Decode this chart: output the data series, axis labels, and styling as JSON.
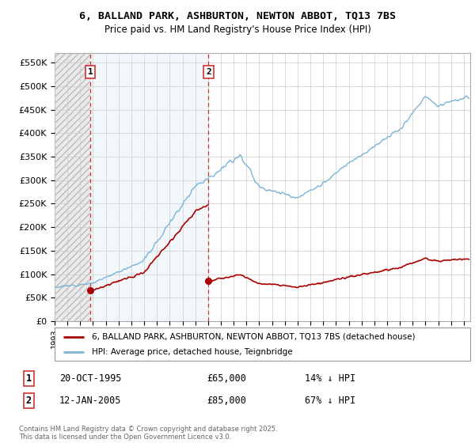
{
  "title_line1": "6, BALLAND PARK, ASHBURTON, NEWTON ABBOT, TQ13 7BS",
  "title_line2": "Price paid vs. HM Land Registry's House Price Index (HPI)",
  "ylim": [
    0,
    570000
  ],
  "yticks": [
    0,
    50000,
    100000,
    150000,
    200000,
    250000,
    300000,
    350000,
    400000,
    450000,
    500000,
    550000
  ],
  "ytick_labels": [
    "£0",
    "£50K",
    "£100K",
    "£150K",
    "£200K",
    "£250K",
    "£300K",
    "£350K",
    "£400K",
    "£450K",
    "£500K",
    "£550K"
  ],
  "sale1_date": 1995.8,
  "sale1_price": 65000,
  "sale2_date": 2005.04,
  "sale2_price": 85000,
  "hpi_color": "#7ab5d5",
  "price_color": "#aa0000",
  "vline_color": "#cc3333",
  "legend_label1": "6, BALLAND PARK, ASHBURTON, NEWTON ABBOT, TQ13 7BS (detached house)",
  "legend_label2": "HPI: Average price, detached house, Teignbridge",
  "footnote1": "Contains HM Land Registry data © Crown copyright and database right 2025.",
  "footnote2": "This data is licensed under the Open Government Licence v3.0.",
  "note1_date": "20-OCT-1995",
  "note1_price": "£65,000",
  "note1_hpi": "14% ↓ HPI",
  "note2_date": "12-JAN-2005",
  "note2_price": "£85,000",
  "note2_hpi": "67% ↓ HPI",
  "xmin": 1993,
  "xmax": 2025.5
}
